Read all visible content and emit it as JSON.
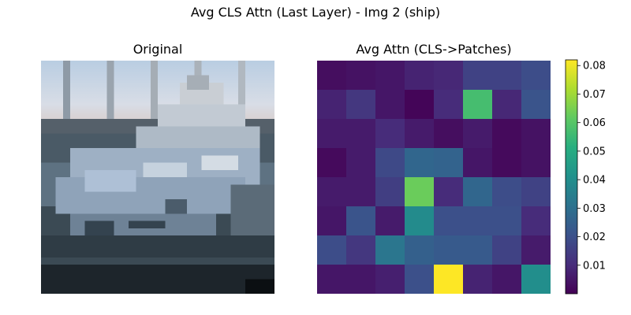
{
  "title": "Avg CLS Attn (Last Layer) - Img 2 (ship)",
  "left_panel": {
    "title": "Original"
  },
  "chart_data": {
    "type": "heatmap",
    "title": "Avg Attn (CLS->Patches)",
    "colormap": "viridis",
    "rows": 8,
    "cols": 8,
    "vmin": 0.0,
    "vmax": 0.082,
    "values": [
      [
        0.003,
        0.004,
        0.005,
        0.008,
        0.009,
        0.016,
        0.016,
        0.019
      ],
      [
        0.008,
        0.013,
        0.005,
        0.001,
        0.01,
        0.057,
        0.009,
        0.021
      ],
      [
        0.006,
        0.006,
        0.01,
        0.006,
        0.003,
        0.006,
        0.002,
        0.004
      ],
      [
        0.002,
        0.006,
        0.018,
        0.027,
        0.026,
        0.005,
        0.002,
        0.004
      ],
      [
        0.006,
        0.006,
        0.015,
        0.063,
        0.01,
        0.027,
        0.019,
        0.016
      ],
      [
        0.005,
        0.021,
        0.006,
        0.039,
        0.02,
        0.02,
        0.02,
        0.01
      ],
      [
        0.019,
        0.013,
        0.032,
        0.025,
        0.023,
        0.023,
        0.016,
        0.006
      ],
      [
        0.005,
        0.005,
        0.007,
        0.02,
        0.082,
        0.008,
        0.005,
        0.04
      ]
    ],
    "colorbar": {
      "ticks": [
        0.01,
        0.02,
        0.03,
        0.04,
        0.05,
        0.06,
        0.07,
        0.08
      ],
      "tick_labels": [
        "0.01",
        "0.02",
        "0.03",
        "0.04",
        "0.05",
        "0.06",
        "0.07",
        "0.08"
      ]
    }
  }
}
